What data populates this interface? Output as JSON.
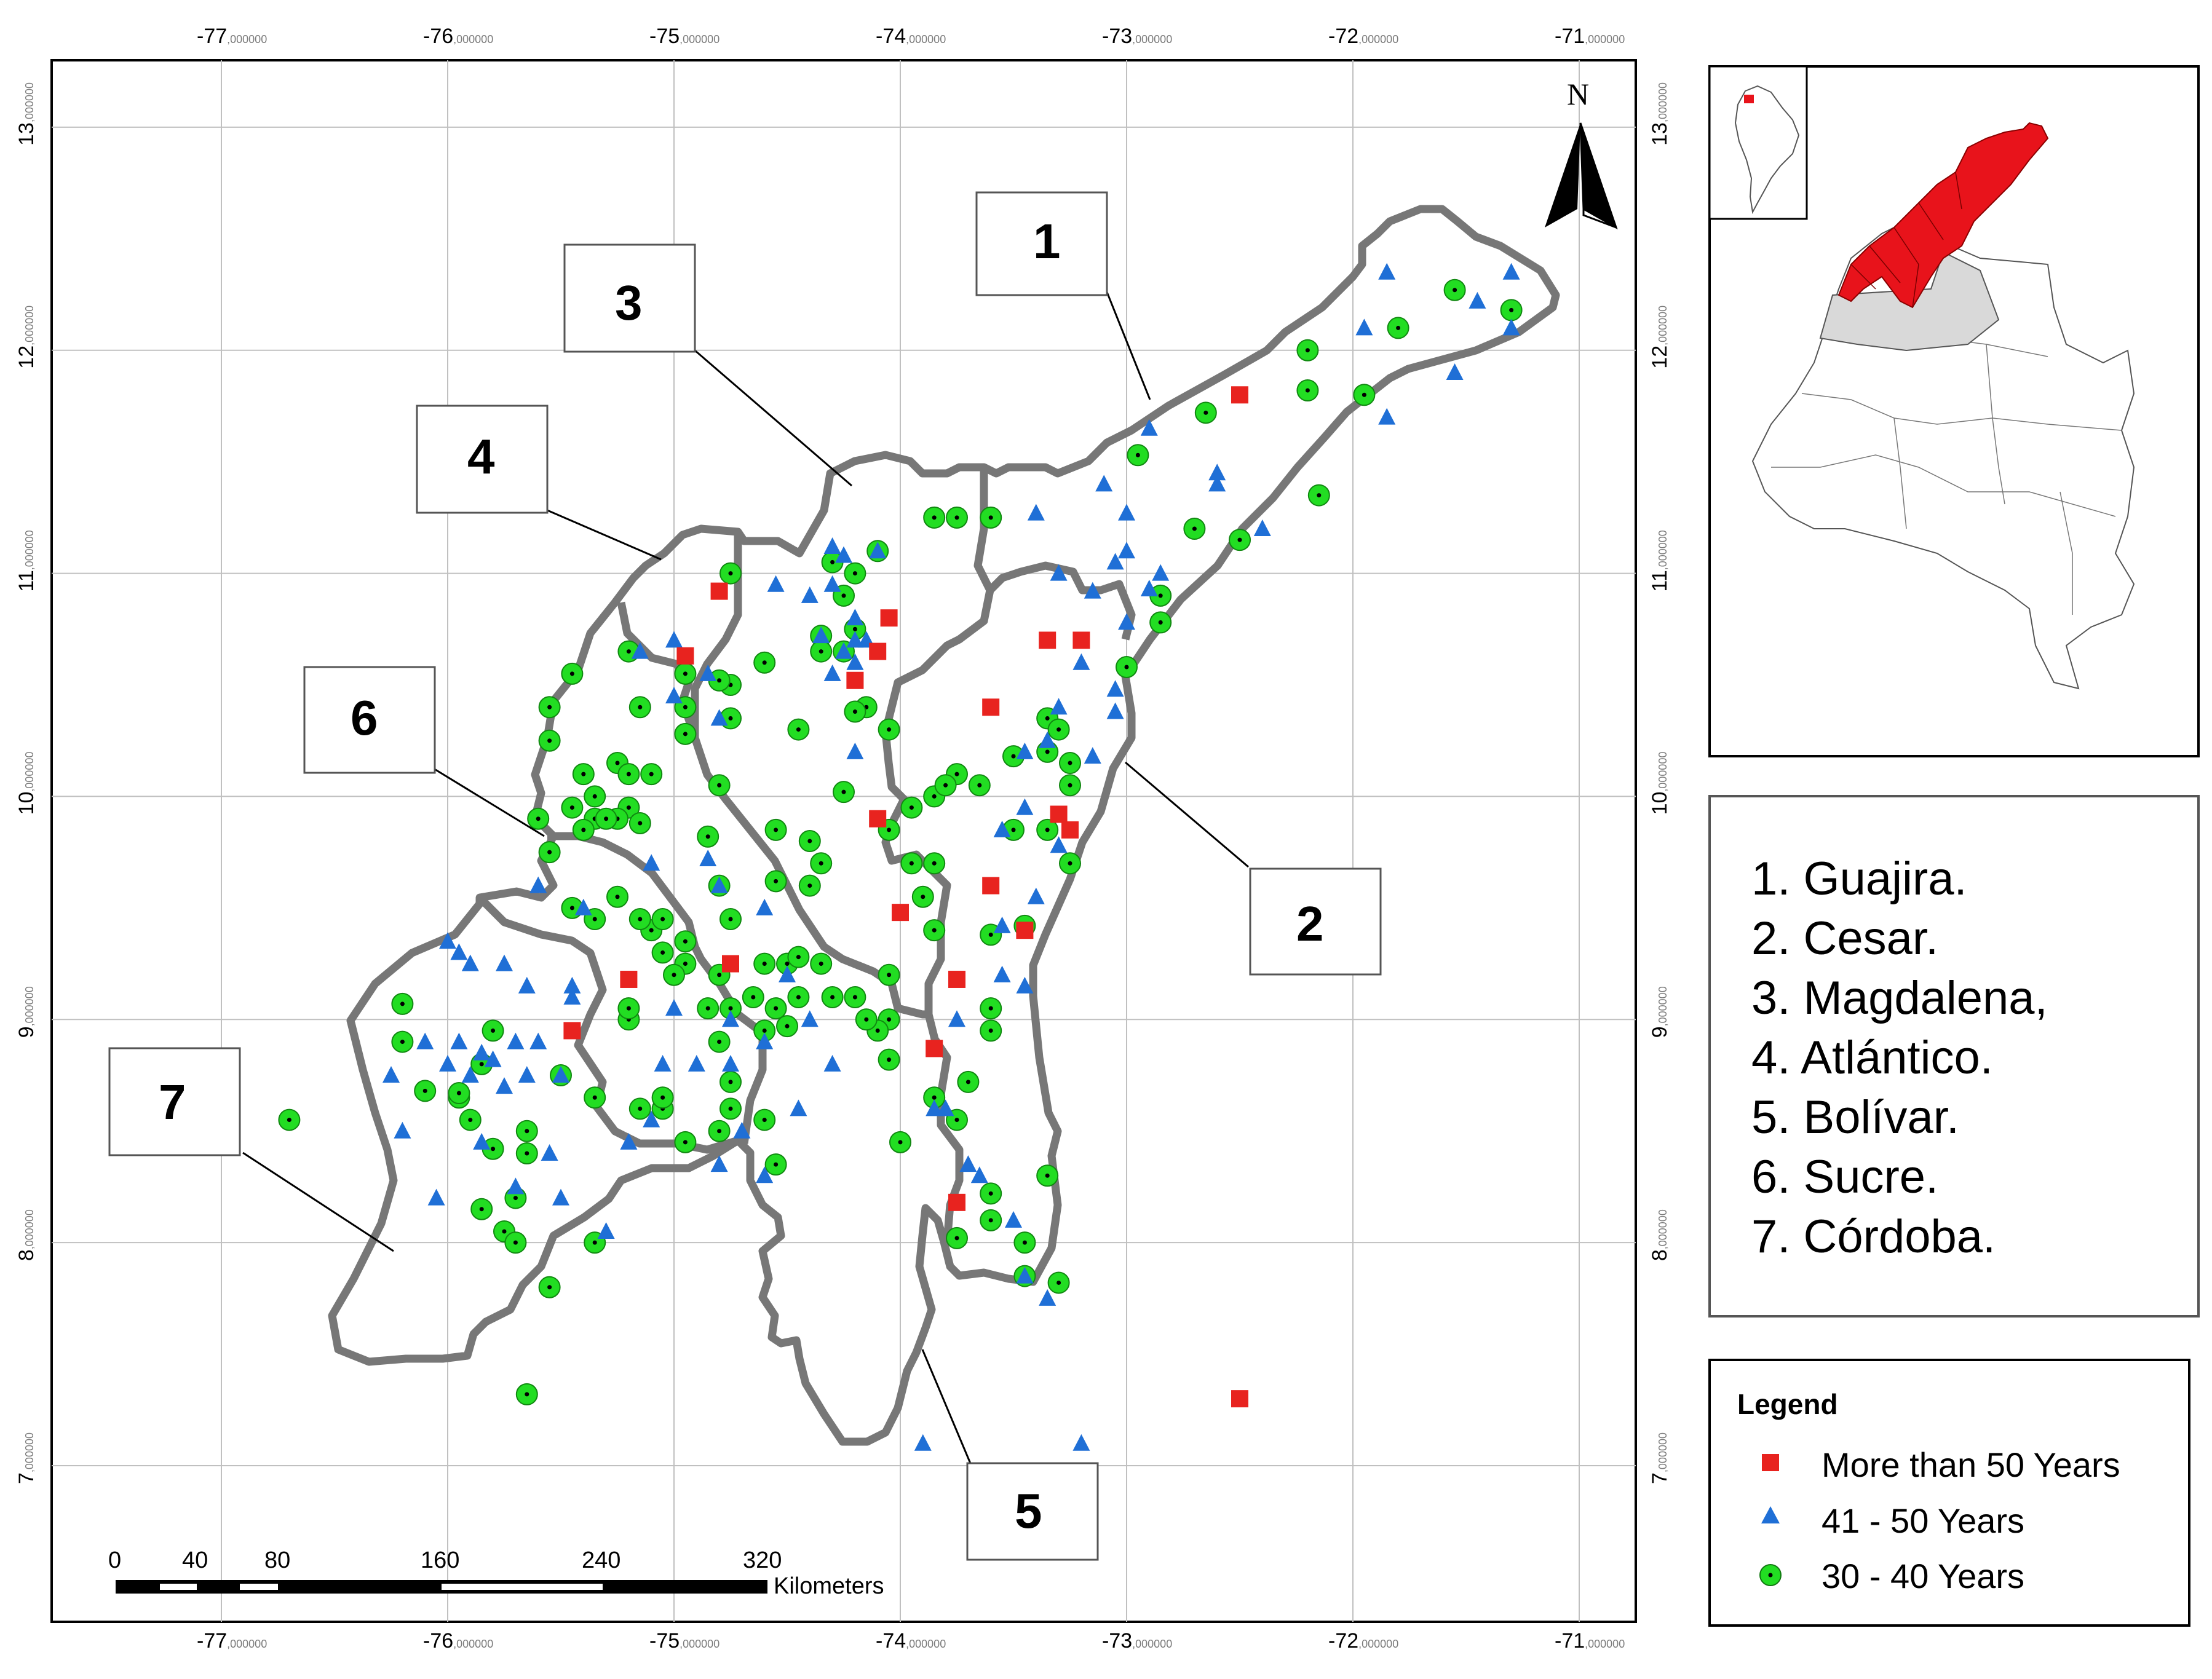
{
  "colors": {
    "boundary": "#777777",
    "grid": "#c0c0c0",
    "more_than_50": "#e8231f",
    "range_41_50": "#1f6fd6",
    "range_30_40": "#22dd22",
    "highlight_region": "#e8131b",
    "neighbor_region": "#d9d9d9"
  },
  "map": {
    "lon_range": [
      -77.75,
      -70.75
    ],
    "lat_range": [
      6.3,
      13.3
    ],
    "lon_ticks": [
      {
        "main": "-77",
        "sub": ",000000"
      },
      {
        "main": "-76",
        "sub": ",000000"
      },
      {
        "main": "-75",
        "sub": ",000000"
      },
      {
        "main": "-74",
        "sub": ",000000"
      },
      {
        "main": "-73",
        "sub": ",000000"
      },
      {
        "main": "-72",
        "sub": ",000000"
      },
      {
        "main": "-71",
        "sub": ",000000"
      }
    ],
    "lat_ticks": [
      {
        "main": "13",
        "sub": ",000000"
      },
      {
        "main": "12",
        "sub": ",000000"
      },
      {
        "main": "11",
        "sub": ",000000"
      },
      {
        "main": "10",
        "sub": ",000000"
      },
      {
        "main": "9",
        "sub": ",000000"
      },
      {
        "main": "8",
        "sub": ",000000"
      },
      {
        "main": "7",
        "sub": ",000000"
      }
    ],
    "north_label": "N",
    "region_labels": [
      "1",
      "2",
      "3",
      "4",
      "5",
      "6",
      "7"
    ],
    "scale_bar": {
      "ticks": [
        "0",
        "40",
        "80",
        "160",
        "240",
        "320"
      ],
      "unit": "Kilometers"
    },
    "points": {
      "more_than_50": [
        [
          -72.5,
          11.8
        ],
        [
          -74.05,
          10.8
        ],
        [
          -74.1,
          10.65
        ],
        [
          -74.2,
          10.52
        ],
        [
          -74.8,
          10.92
        ],
        [
          -74.95,
          10.63
        ],
        [
          -73.35,
          10.7
        ],
        [
          -73.2,
          10.7
        ],
        [
          -73.6,
          10.4
        ],
        [
          -74.1,
          9.9
        ],
        [
          -73.3,
          9.92
        ],
        [
          -73.25,
          9.85
        ],
        [
          -73.6,
          9.6
        ],
        [
          -74.0,
          9.48
        ],
        [
          -73.75,
          9.18
        ],
        [
          -74.75,
          9.25
        ],
        [
          -75.2,
          9.18
        ],
        [
          -75.45,
          8.95
        ],
        [
          -73.45,
          9.4
        ],
        [
          -73.85,
          8.87
        ],
        [
          -73.75,
          8.18
        ],
        [
          -72.5,
          7.3
        ]
      ],
      "range_41_50": [
        [
          -71.3,
          12.35
        ],
        [
          -71.45,
          12.22
        ],
        [
          -71.3,
          12.1
        ],
        [
          -71.55,
          11.9
        ],
        [
          -71.85,
          12.35
        ],
        [
          -71.95,
          12.1
        ],
        [
          -71.85,
          11.7
        ],
        [
          -72.6,
          11.45
        ],
        [
          -72.6,
          11.4
        ],
        [
          -72.4,
          11.2
        ],
        [
          -72.9,
          11.65
        ],
        [
          -73.1,
          11.4
        ],
        [
          -73.0,
          11.27
        ],
        [
          -73.4,
          11.27
        ],
        [
          -73.0,
          11.1
        ],
        [
          -73.05,
          11.05
        ],
        [
          -73.3,
          11.0
        ],
        [
          -73.15,
          10.92
        ],
        [
          -72.9,
          10.93
        ],
        [
          -72.85,
          11.0
        ],
        [
          -73.0,
          10.78
        ],
        [
          -73.2,
          10.6
        ],
        [
          -73.3,
          10.4
        ],
        [
          -73.05,
          10.48
        ],
        [
          -73.05,
          10.38
        ],
        [
          -73.45,
          10.2
        ],
        [
          -73.35,
          10.25
        ],
        [
          -73.15,
          10.18
        ],
        [
          -73.55,
          9.85
        ],
        [
          -73.45,
          9.95
        ],
        [
          -73.3,
          9.78
        ],
        [
          -73.4,
          9.55
        ],
        [
          -73.55,
          9.42
        ],
        [
          -73.55,
          9.2
        ],
        [
          -73.45,
          9.15
        ],
        [
          -73.75,
          9.0
        ],
        [
          -73.85,
          8.6
        ],
        [
          -73.7,
          8.35
        ],
        [
          -73.5,
          8.1
        ],
        [
          -73.35,
          7.75
        ],
        [
          -73.9,
          7.1
        ],
        [
          -73.2,
          7.1
        ],
        [
          -74.25,
          11.08
        ],
        [
          -74.1,
          11.1
        ],
        [
          -74.3,
          11.12
        ],
        [
          -74.4,
          10.9
        ],
        [
          -74.2,
          10.8
        ],
        [
          -74.35,
          10.72
        ],
        [
          -74.2,
          10.6
        ],
        [
          -74.3,
          10.55
        ],
        [
          -74.15,
          10.7
        ],
        [
          -74.25,
          10.65
        ],
        [
          -74.55,
          10.95
        ],
        [
          -74.3,
          10.95
        ],
        [
          -74.2,
          10.7
        ],
        [
          -75.0,
          10.7
        ],
        [
          -74.85,
          10.55
        ],
        [
          -75.0,
          10.45
        ],
        [
          -75.15,
          10.65
        ],
        [
          -74.8,
          10.35
        ],
        [
          -74.85,
          9.72
        ],
        [
          -74.8,
          9.6
        ],
        [
          -75.1,
          9.7
        ],
        [
          -74.2,
          10.2
        ],
        [
          -74.6,
          9.5
        ],
        [
          -75.45,
          9.15
        ],
        [
          -75.0,
          9.05
        ],
        [
          -74.75,
          9.0
        ],
        [
          -74.5,
          9.2
        ],
        [
          -74.3,
          8.8
        ],
        [
          -74.75,
          8.8
        ],
        [
          -74.7,
          8.5
        ],
        [
          -74.8,
          8.35
        ],
        [
          -74.6,
          8.3
        ],
        [
          -75.2,
          8.45
        ],
        [
          -74.9,
          8.8
        ],
        [
          -75.1,
          8.55
        ],
        [
          -75.05,
          8.8
        ],
        [
          -75.3,
          8.05
        ],
        [
          -75.5,
          8.2
        ],
        [
          -75.55,
          8.4
        ],
        [
          -75.7,
          8.25
        ],
        [
          -75.85,
          8.45
        ],
        [
          -76.05,
          8.2
        ],
        [
          -76.2,
          8.5
        ],
        [
          -75.65,
          8.75
        ],
        [
          -75.85,
          8.85
        ],
        [
          -75.95,
          8.9
        ],
        [
          -76.0,
          8.8
        ],
        [
          -75.9,
          8.75
        ],
        [
          -75.75,
          8.7
        ],
        [
          -75.8,
          8.82
        ],
        [
          -75.6,
          8.9
        ],
        [
          -75.5,
          8.75
        ],
        [
          -75.7,
          8.9
        ],
        [
          -76.0,
          9.35
        ],
        [
          -75.9,
          9.25
        ],
        [
          -75.95,
          9.3
        ],
        [
          -75.75,
          9.25
        ],
        [
          -75.65,
          9.15
        ],
        [
          -75.45,
          9.1
        ],
        [
          -76.1,
          8.9
        ],
        [
          -76.25,
          8.75
        ],
        [
          -75.6,
          9.6
        ],
        [
          -75.4,
          9.5
        ],
        [
          -74.4,
          9.0
        ],
        [
          -74.6,
          8.9
        ],
        [
          -74.45,
          8.6
        ],
        [
          -73.8,
          8.6
        ],
        [
          -73.65,
          8.3
        ],
        [
          -73.45,
          7.85
        ]
      ],
      "range_30_40": [
        [
          -71.55,
          12.27
        ],
        [
          -71.3,
          12.18
        ],
        [
          -71.8,
          12.1
        ],
        [
          -72.2,
          12.0
        ],
        [
          -72.2,
          11.82
        ],
        [
          -71.95,
          11.8
        ],
        [
          -72.15,
          11.35
        ],
        [
          -72.65,
          11.72
        ],
        [
          -72.5,
          11.15
        ],
        [
          -72.7,
          11.2
        ],
        [
          -72.95,
          11.53
        ],
        [
          -72.85,
          10.9
        ],
        [
          -72.85,
          10.78
        ],
        [
          -73.0,
          10.58
        ],
        [
          -73.35,
          10.35
        ],
        [
          -73.3,
          10.3
        ],
        [
          -73.25,
          10.15
        ],
        [
          -73.5,
          10.18
        ],
        [
          -73.35,
          10.2
        ],
        [
          -73.25,
          10.05
        ],
        [
          -73.5,
          9.85
        ],
        [
          -73.35,
          9.85
        ],
        [
          -73.25,
          9.7
        ],
        [
          -73.45,
          9.42
        ],
        [
          -73.6,
          9.38
        ],
        [
          -73.6,
          9.05
        ],
        [
          -73.6,
          8.95
        ],
        [
          -73.7,
          8.72
        ],
        [
          -73.75,
          8.55
        ],
        [
          -73.6,
          8.22
        ],
        [
          -73.6,
          8.1
        ],
        [
          -73.75,
          8.02
        ],
        [
          -73.35,
          8.3
        ],
        [
          -73.45,
          8.0
        ],
        [
          -73.45,
          7.85
        ],
        [
          -73.3,
          7.82
        ],
        [
          -74.1,
          11.1
        ],
        [
          -73.85,
          11.25
        ],
        [
          -73.75,
          11.25
        ],
        [
          -73.6,
          11.25
        ],
        [
          -74.3,
          11.05
        ],
        [
          -74.2,
          11.0
        ],
        [
          -74.25,
          10.9
        ],
        [
          -74.2,
          10.75
        ],
        [
          -74.35,
          10.72
        ],
        [
          -74.35,
          10.65
        ],
        [
          -74.25,
          10.65
        ],
        [
          -74.15,
          10.4
        ],
        [
          -74.05,
          10.3
        ],
        [
          -74.2,
          10.38
        ],
        [
          -74.45,
          10.3
        ],
        [
          -74.25,
          10.02
        ],
        [
          -74.05,
          9.85
        ],
        [
          -73.95,
          9.95
        ],
        [
          -73.85,
          10.0
        ],
        [
          -73.75,
          10.1
        ],
        [
          -73.8,
          10.05
        ],
        [
          -73.65,
          10.05
        ],
        [
          -73.95,
          9.7
        ],
        [
          -73.85,
          9.7
        ],
        [
          -73.9,
          9.55
        ],
        [
          -73.85,
          9.4
        ],
        [
          -74.05,
          9.2
        ],
        [
          -74.05,
          9.0
        ],
        [
          -74.1,
          8.95
        ],
        [
          -74.05,
          8.82
        ],
        [
          -74.0,
          8.45
        ],
        [
          -73.85,
          8.65
        ],
        [
          -74.75,
          11.0
        ],
        [
          -74.6,
          10.6
        ],
        [
          -74.75,
          10.5
        ],
        [
          -74.8,
          10.52
        ],
        [
          -74.75,
          10.35
        ],
        [
          -74.95,
          10.4
        ],
        [
          -74.95,
          10.28
        ],
        [
          -74.95,
          10.55
        ],
        [
          -75.15,
          10.4
        ],
        [
          -75.2,
          10.65
        ],
        [
          -74.8,
          10.05
        ],
        [
          -74.55,
          9.85
        ],
        [
          -74.4,
          9.8
        ],
        [
          -74.55,
          9.62
        ],
        [
          -74.4,
          9.6
        ],
        [
          -74.35,
          9.7
        ],
        [
          -74.85,
          9.82
        ],
        [
          -74.8,
          9.6
        ],
        [
          -74.75,
          9.45
        ],
        [
          -74.95,
          9.35
        ],
        [
          -74.95,
          9.25
        ],
        [
          -74.8,
          9.2
        ],
        [
          -74.6,
          9.25
        ],
        [
          -74.5,
          9.25
        ],
        [
          -74.45,
          9.28
        ],
        [
          -74.35,
          9.25
        ],
        [
          -74.3,
          9.1
        ],
        [
          -74.2,
          9.1
        ],
        [
          -74.15,
          9.0
        ],
        [
          -74.45,
          9.1
        ],
        [
          -74.55,
          9.05
        ],
        [
          -74.65,
          9.1
        ],
        [
          -74.75,
          9.05
        ],
        [
          -74.85,
          9.05
        ],
        [
          -74.5,
          8.97
        ],
        [
          -74.6,
          8.95
        ],
        [
          -74.8,
          8.9
        ],
        [
          -74.75,
          8.72
        ],
        [
          -74.75,
          8.6
        ],
        [
          -74.6,
          8.55
        ],
        [
          -74.55,
          8.35
        ],
        [
          -74.8,
          8.5
        ],
        [
          -74.95,
          8.45
        ],
        [
          -75.05,
          8.6
        ],
        [
          -75.0,
          9.2
        ],
        [
          -75.2,
          9.0
        ],
        [
          -75.1,
          9.4
        ],
        [
          -75.15,
          9.45
        ],
        [
          -75.05,
          9.3
        ],
        [
          -75.55,
          10.4
        ],
        [
          -75.45,
          10.55
        ],
        [
          -75.55,
          10.25
        ],
        [
          -75.4,
          10.1
        ],
        [
          -75.25,
          10.15
        ],
        [
          -75.2,
          10.1
        ],
        [
          -75.1,
          10.1
        ],
        [
          -75.35,
          10.0
        ],
        [
          -75.45,
          9.95
        ],
        [
          -75.35,
          9.9
        ],
        [
          -75.2,
          9.95
        ],
        [
          -75.25,
          9.9
        ],
        [
          -75.15,
          9.88
        ],
        [
          -75.4,
          9.85
        ],
        [
          -75.3,
          9.9
        ],
        [
          -75.6,
          9.9
        ],
        [
          -75.55,
          9.75
        ],
        [
          -75.45,
          9.5
        ],
        [
          -75.35,
          9.45
        ],
        [
          -75.25,
          9.55
        ],
        [
          -75.05,
          9.45
        ],
        [
          -75.2,
          9.05
        ],
        [
          -75.15,
          8.6
        ],
        [
          -75.05,
          8.65
        ],
        [
          -75.35,
          8.65
        ],
        [
          -75.5,
          8.75
        ],
        [
          -75.8,
          8.95
        ],
        [
          -75.95,
          8.65
        ],
        [
          -75.9,
          8.55
        ],
        [
          -75.8,
          8.42
        ],
        [
          -75.65,
          8.5
        ],
        [
          -75.65,
          8.4
        ],
        [
          -75.7,
          8.2
        ],
        [
          -75.85,
          8.15
        ],
        [
          -75.75,
          8.05
        ],
        [
          -75.7,
          8.0
        ],
        [
          -75.35,
          8.0
        ],
        [
          -75.55,
          7.8
        ],
        [
          -75.65,
          7.32
        ],
        [
          -76.2,
          9.07
        ],
        [
          -76.2,
          8.9
        ],
        [
          -76.1,
          8.68
        ],
        [
          -75.95,
          8.67
        ],
        [
          -75.85,
          8.8
        ],
        [
          -76.7,
          8.55
        ]
      ]
    }
  },
  "departments": [
    "1. Guajira.",
    "2. Cesar.",
    "3. Magdalena,",
    "4. Atlántico.",
    "5. Bolívar.",
    "6. Sucre.",
    "7. Córdoba."
  ],
  "legend": {
    "title": "Legend",
    "items": [
      {
        "label": "More than 50 Years",
        "symbol": "square"
      },
      {
        "label": "41 - 50 Years",
        "symbol": "triangle"
      },
      {
        "label": "30 - 40 Years",
        "symbol": "circle"
      }
    ]
  }
}
